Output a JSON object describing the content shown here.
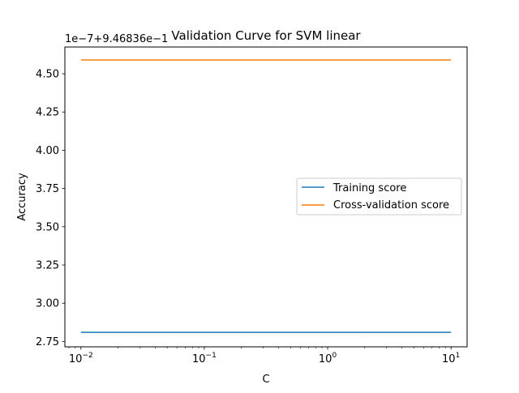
{
  "chart_data": {
    "type": "line",
    "title": "Validation Curve for SVM linear",
    "xlabel": "C",
    "ylabel": "Accuracy",
    "x_scale": "log",
    "xlim": [
      0.00741,
      13.5
    ],
    "ylim": [
      2.715,
      4.675
    ],
    "y_offset_text": "1e−7+9.46836e−1",
    "x_ticks": [
      {
        "value": 0.01,
        "base": "10",
        "exp": "−2"
      },
      {
        "value": 0.1,
        "base": "10",
        "exp": "−1"
      },
      {
        "value": 1,
        "base": "10",
        "exp": "0"
      },
      {
        "value": 10,
        "base": "10",
        "exp": "1"
      }
    ],
    "y_ticks": [
      {
        "value": 2.75,
        "label": "2.75"
      },
      {
        "value": 3.0,
        "label": "3.00"
      },
      {
        "value": 3.25,
        "label": "3.25"
      },
      {
        "value": 3.5,
        "label": "3.50"
      },
      {
        "value": 3.75,
        "label": "3.75"
      },
      {
        "value": 4.0,
        "label": "4.00"
      },
      {
        "value": 4.25,
        "label": "4.25"
      },
      {
        "value": 4.5,
        "label": "4.50"
      }
    ],
    "x": [
      0.01,
      10
    ],
    "series": [
      {
        "name": "Training score",
        "color": "#1f77b4",
        "values": [
          2.81,
          2.81
        ]
      },
      {
        "name": "Cross-validation score",
        "color": "#ff7f0e",
        "values": [
          4.59,
          4.59
        ]
      }
    ],
    "grid": false,
    "legend_position": "center-right"
  }
}
